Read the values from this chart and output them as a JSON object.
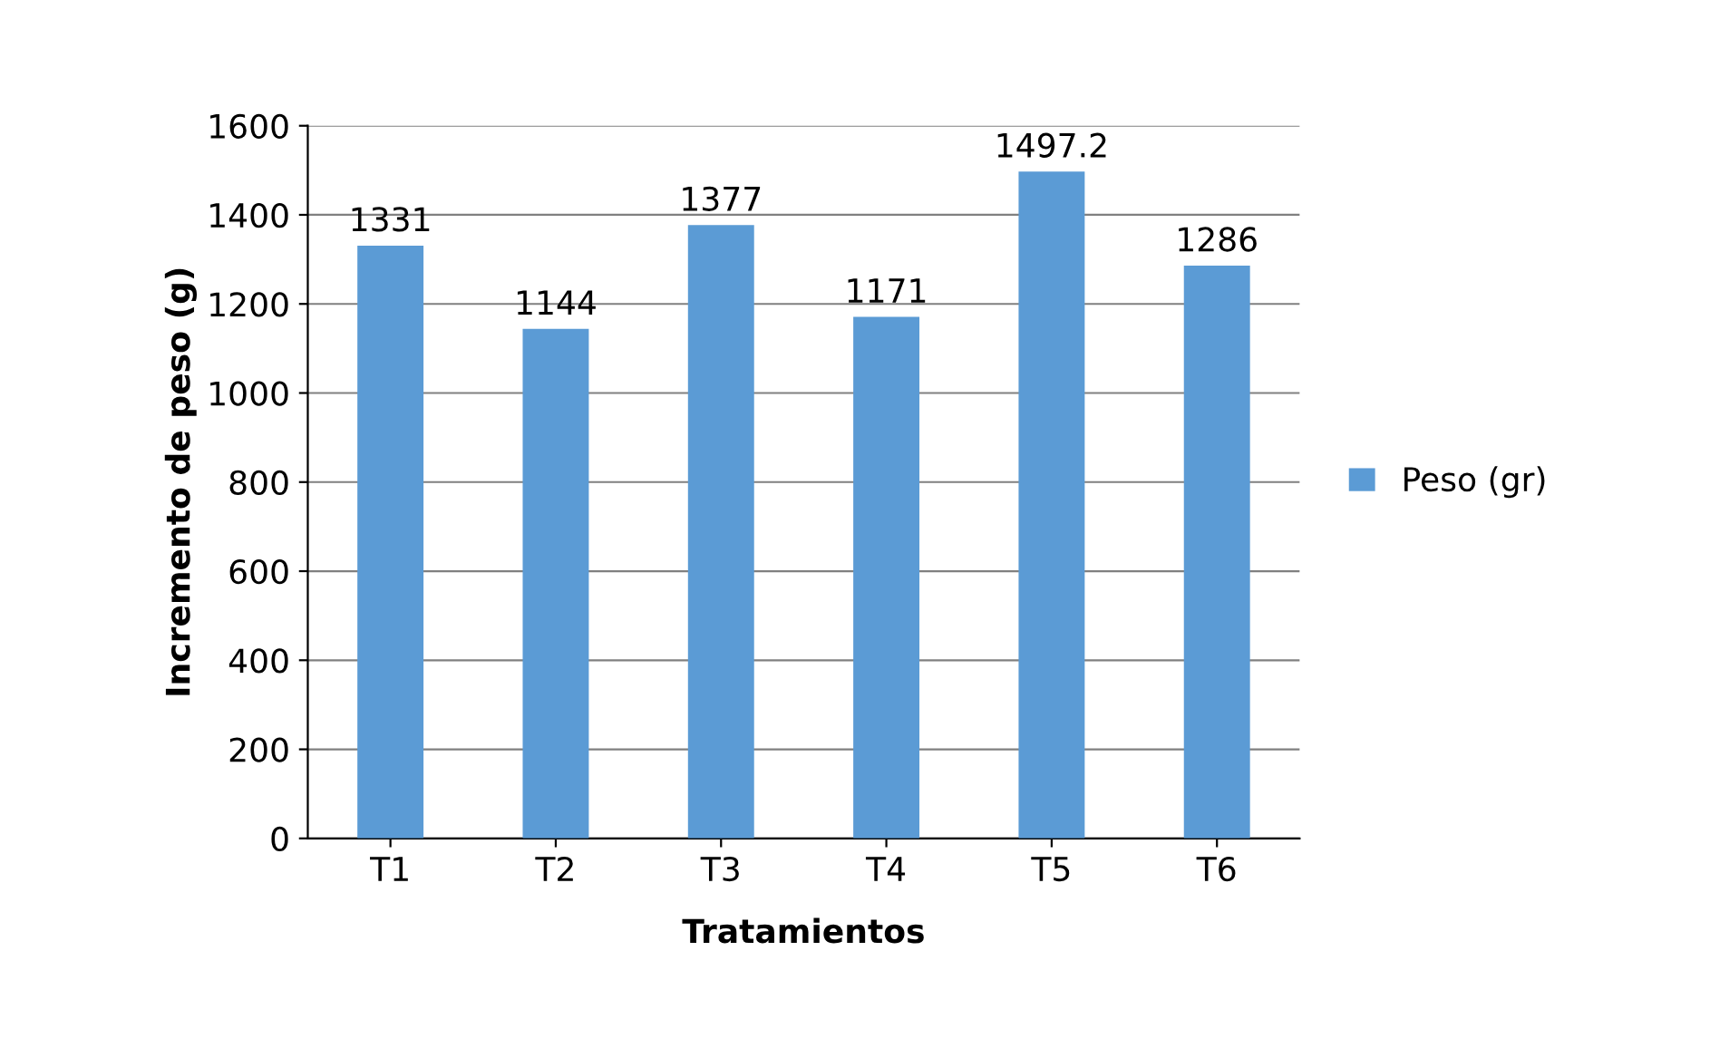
{
  "chart_data": {
    "type": "bar",
    "xlabel": "Tratamientos",
    "ylabel": "Incremento de peso (g)",
    "categories": [
      "T1",
      "T2",
      "T3",
      "T4",
      "T5",
      "T6"
    ],
    "series": [
      {
        "name": "Peso (gr)",
        "color": "#5b9bd5",
        "values": [
          1331,
          1144,
          1377,
          1171,
          1497.2,
          1286
        ]
      }
    ],
    "ylim": [
      0,
      1600
    ],
    "yticks": [
      0,
      200,
      400,
      600,
      800,
      1000,
      1200,
      1400,
      1600
    ],
    "grid": "y",
    "legend": "right",
    "data_labels": true
  }
}
